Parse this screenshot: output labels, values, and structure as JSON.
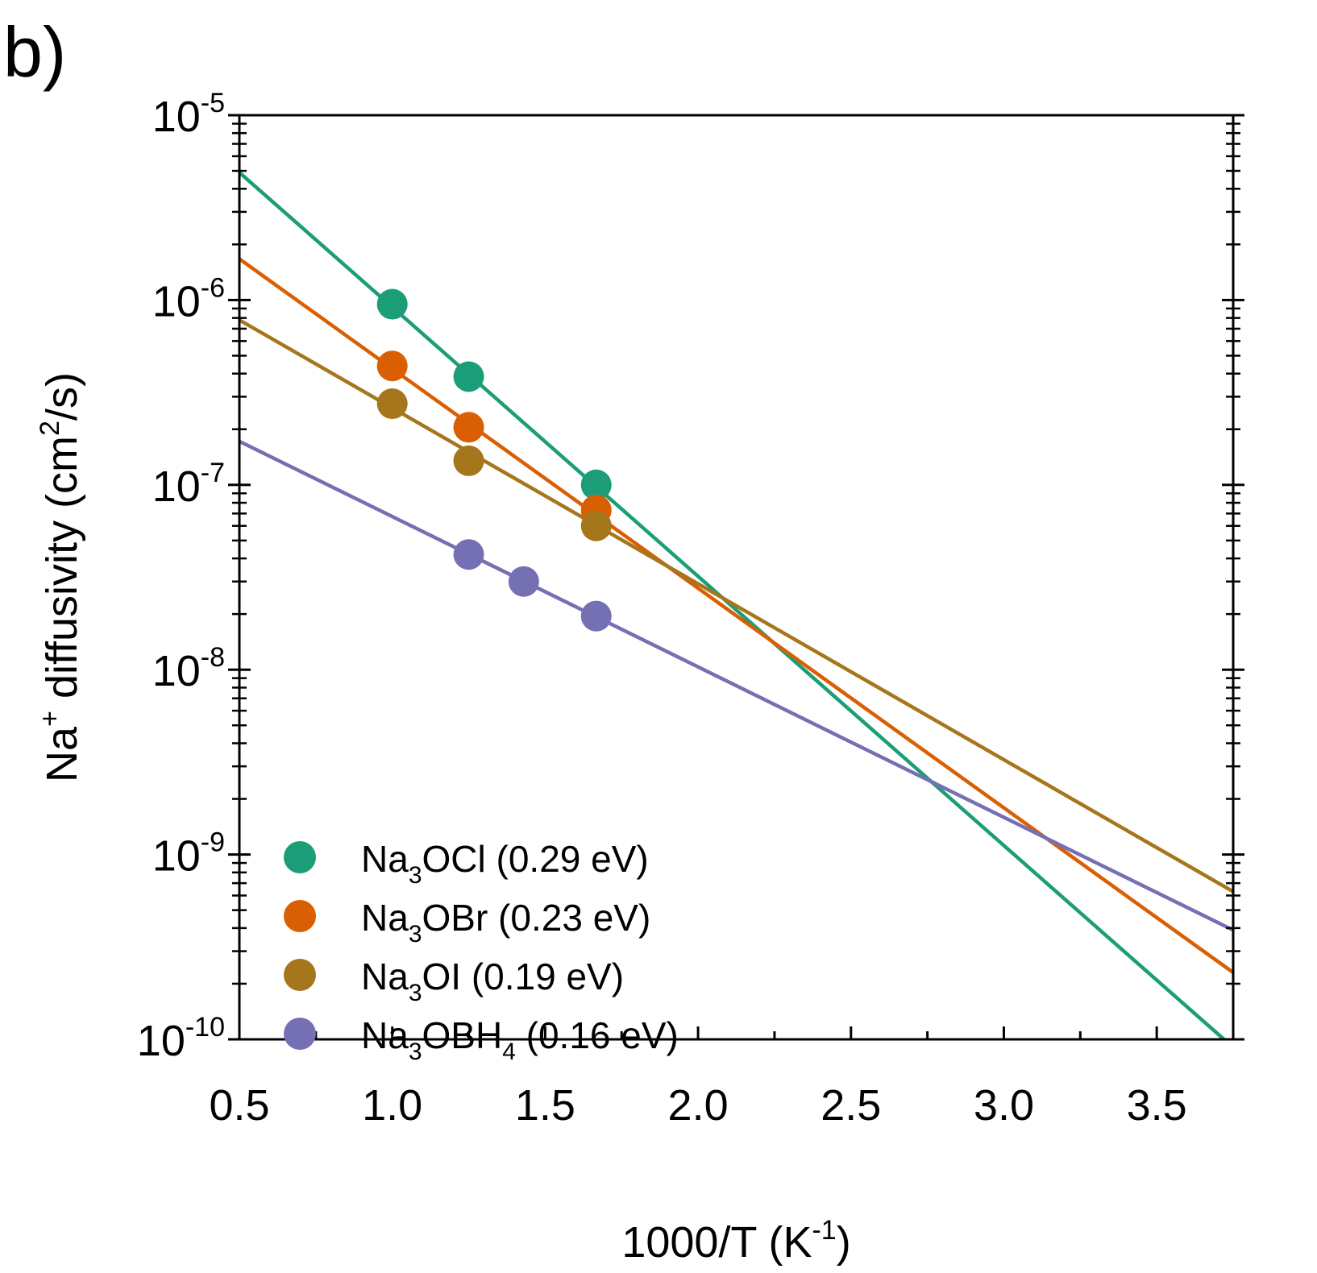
{
  "panel_label": "b)",
  "chart_data": {
    "type": "scatter",
    "title": "",
    "xlabel": {
      "main": "1000/T (K",
      "sup": "-1",
      "tail": ")"
    },
    "ylabel": {
      "pre": "Na",
      "sup1": "+",
      "mid": " diffusivity (cm",
      "sup2": "2",
      "tail": "/s)"
    },
    "x_range": [
      0.5,
      3.75
    ],
    "y_range": [
      1e-10,
      1e-05
    ],
    "y_scale": "log",
    "x_ticks": [
      {
        "value": 0.5,
        "label": "0.5"
      },
      {
        "value": 1.0,
        "label": "1.0"
      },
      {
        "value": 1.5,
        "label": "1.5"
      },
      {
        "value": 2.0,
        "label": "2.0"
      },
      {
        "value": 2.5,
        "label": "2.5"
      },
      {
        "value": 3.0,
        "label": "3.0"
      },
      {
        "value": 3.5,
        "label": "3.5"
      }
    ],
    "y_ticks": [
      {
        "value": 1e-05,
        "base": "10",
        "exp": "-5"
      },
      {
        "value": 1e-06,
        "base": "10",
        "exp": "-6"
      },
      {
        "value": 1e-07,
        "base": "10",
        "exp": "-7"
      },
      {
        "value": 1e-08,
        "base": "10",
        "exp": "-8"
      },
      {
        "value": 1e-09,
        "base": "10",
        "exp": "-9"
      },
      {
        "value": 1e-10,
        "base": "10",
        "exp": "-10"
      }
    ],
    "grid": false,
    "legend_position": "bottom-left",
    "series": [
      {
        "name": "Na3OCl (0.29 eV)",
        "legend": {
          "pre": "Na",
          "sub": "3",
          "mid": "OCl",
          "sub2": "",
          "tail": " (0.29 eV)"
        },
        "color": "#1b9e77",
        "points": [
          [
            1.0,
            9.5e-07
          ],
          [
            1.25,
            3.85e-07
          ],
          [
            1.667,
            1e-07
          ]
        ],
        "fit": [
          [
            0.5,
            4.9e-06
          ],
          [
            3.72,
            1e-10
          ]
        ]
      },
      {
        "name": "Na3OBr (0.23 eV)",
        "legend": {
          "pre": "Na",
          "sub": "3",
          "mid": "OBr",
          "sub2": "",
          "tail": " (0.23 eV)"
        },
        "color": "#d95f02",
        "points": [
          [
            1.0,
            4.4e-07
          ],
          [
            1.25,
            2.05e-07
          ],
          [
            1.667,
            7.3e-08
          ]
        ],
        "fit": [
          [
            0.5,
            1.67e-06
          ],
          [
            3.75,
            2.3e-10
          ]
        ]
      },
      {
        "name": "Na3OI (0.19 eV)",
        "legend": {
          "pre": "Na",
          "sub": "3",
          "mid": "OI",
          "sub2": "",
          "tail": " (0.19 eV)"
        },
        "color": "#a6761d",
        "points": [
          [
            1.0,
            2.75e-07
          ],
          [
            1.25,
            1.35e-07
          ],
          [
            1.667,
            6e-08
          ]
        ],
        "fit": [
          [
            0.5,
            7.8e-07
          ],
          [
            3.75,
            6.3e-10
          ]
        ]
      },
      {
        "name": "Na3OBH4 (0.16 eV)",
        "legend": {
          "pre": "Na",
          "sub": "3",
          "mid": "OBH",
          "sub2": "4",
          "tail": " (0.16 eV)"
        },
        "color": "#7570b3",
        "points": [
          [
            1.25,
            4.2e-08
          ],
          [
            1.43,
            3e-08
          ],
          [
            1.667,
            1.95e-08
          ]
        ],
        "fit": [
          [
            0.5,
            1.72e-07
          ],
          [
            3.75,
            3.9e-10
          ]
        ]
      }
    ]
  }
}
